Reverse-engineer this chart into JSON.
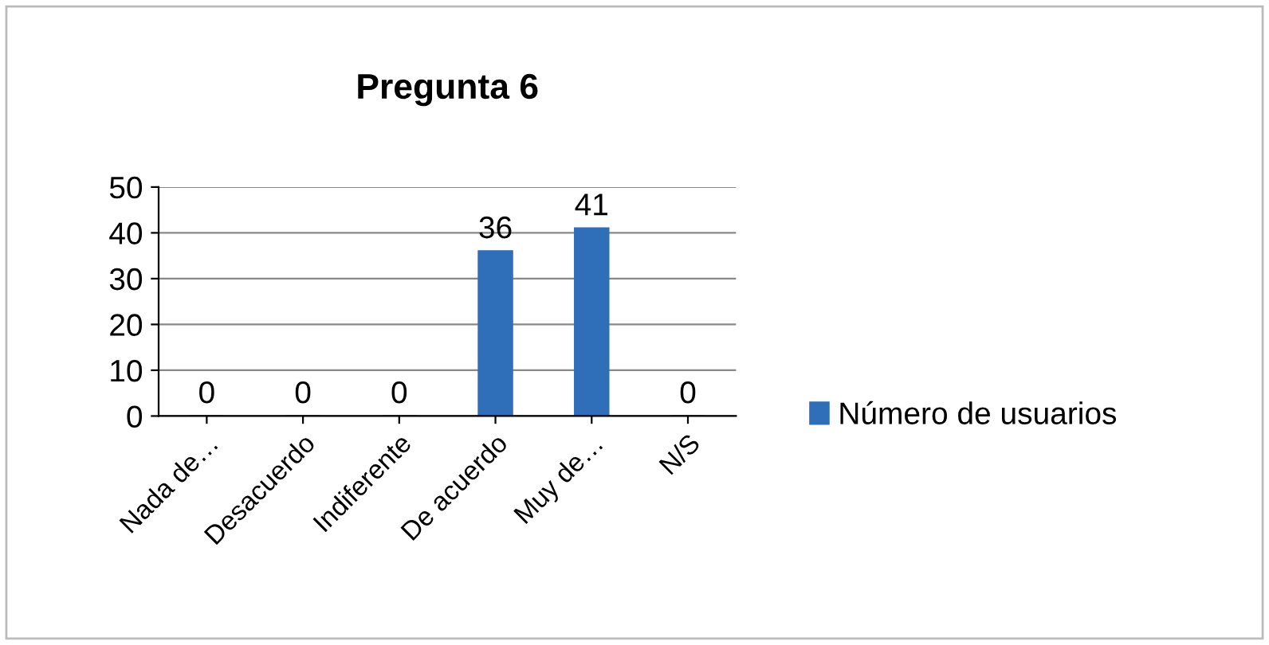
{
  "chart_data": {
    "type": "bar",
    "title": "Pregunta 6",
    "categories": [
      "Nada de…",
      "Desacuerdo",
      "Indiferente",
      "De acuerdo",
      "Muy de…",
      "N/S"
    ],
    "series": [
      {
        "name": "Número de usuarios",
        "color": "#2f6eb8",
        "values": [
          0,
          0,
          0,
          36,
          41,
          0
        ]
      }
    ],
    "ylim": [
      0,
      50
    ],
    "yticks": [
      0,
      10,
      20,
      30,
      40,
      50
    ],
    "grid": "y",
    "legend": "right",
    "data_labels": true
  }
}
